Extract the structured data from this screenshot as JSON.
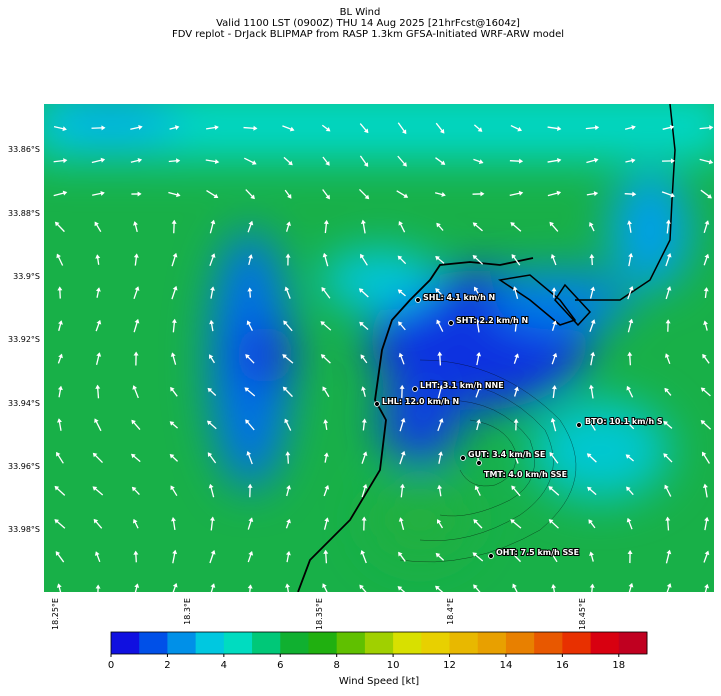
{
  "header": {
    "title": "BL Wind",
    "lines": [
      "Valid 1100 LST (0900Z) THU 14 Aug 2025 [21hrFcst@1604z]",
      "FDV replot - DrJack BLIPMAP from RASP 1.3km GFSA-Initiated WRF-ARW model"
    ]
  },
  "map": {
    "lat_labels": [
      "33.86°S",
      "33.88°S",
      "33.9°S",
      "33.92°S",
      "33.94°S",
      "33.96°S",
      "33.98°S"
    ],
    "lon_labels": [
      "18.25°E",
      "18.3°E",
      "18.35°E",
      "18.4°E",
      "18.45°E"
    ],
    "stations": [
      {
        "label": "SHL: 4.1 km/h N"
      },
      {
        "label": "SHT: 2.2 km/h N"
      },
      {
        "label": "LHT: 3.1 km/h NNE"
      },
      {
        "label": "LHL: 12.0 km/h N"
      },
      {
        "label": "BTO: 10.1 km/h S"
      },
      {
        "label": "GUT: 3.4 km/h SE"
      },
      {
        "label": "TMT: 4.0 km/h SSE"
      },
      {
        "label": "OHT: 7.5 km/h SSE"
      }
    ]
  },
  "colorbar": {
    "label": "Wind Speed [kt]",
    "range": [
      0,
      19
    ],
    "ticks": [
      0,
      2,
      4,
      6,
      8,
      10,
      12,
      14,
      16,
      18
    ],
    "colors": [
      "#1010e0",
      "#0050e8",
      "#0090e8",
      "#00c8e0",
      "#00dcc0",
      "#00c878",
      "#10b030",
      "#20b010",
      "#60c000",
      "#a0d000",
      "#d8e000",
      "#e8d000",
      "#e8b800",
      "#e8a000",
      "#e88000",
      "#e85800",
      "#e83000",
      "#d80010",
      "#c00020"
    ]
  }
}
